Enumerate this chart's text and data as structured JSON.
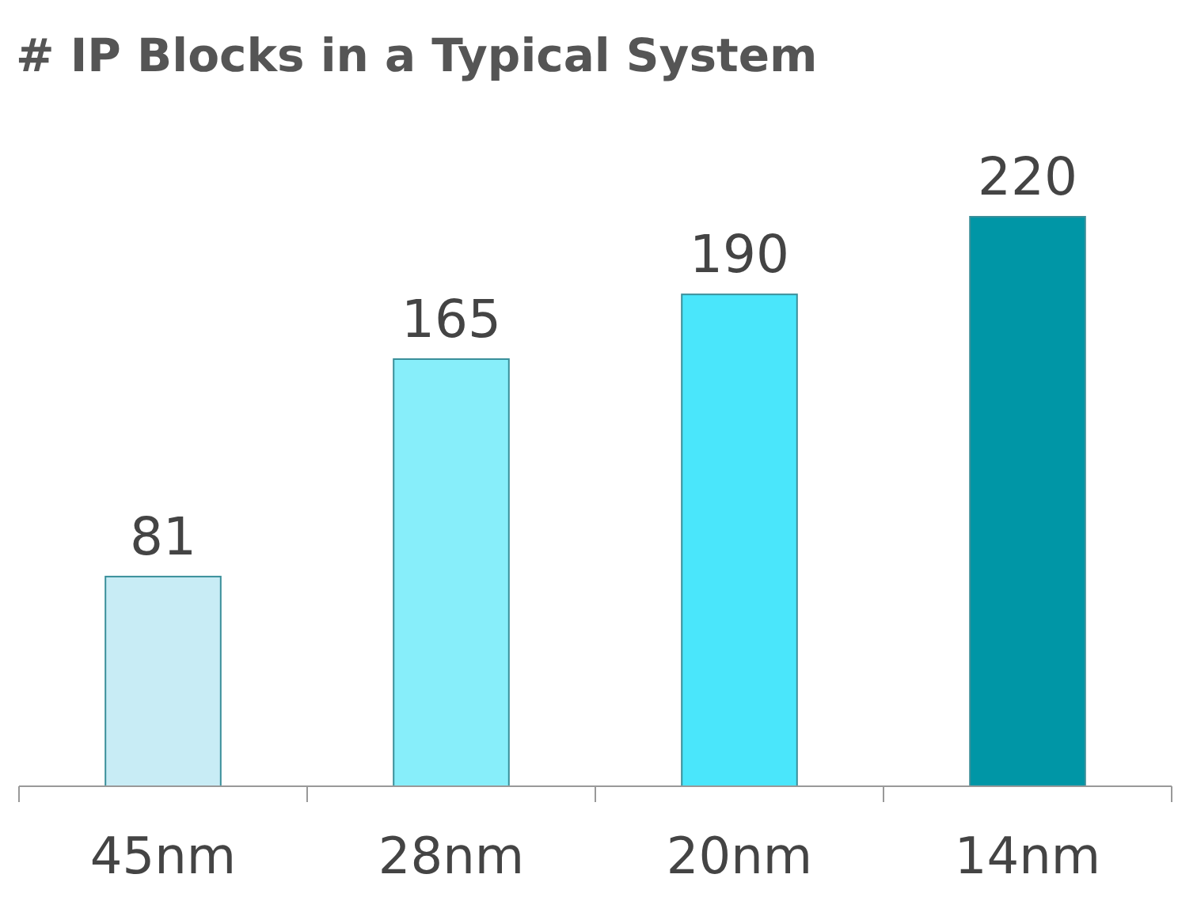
{
  "chart_data": {
    "type": "bar",
    "title": "# IP Blocks in a Typical System",
    "categories": [
      "45nm",
      "28nm",
      "20nm",
      "14nm"
    ],
    "values": [
      81,
      165,
      190,
      220
    ],
    "colors": [
      "#c8ecf5",
      "#87eefa",
      "#4ae6fb",
      "#0096a6"
    ],
    "data_labels": true
  }
}
